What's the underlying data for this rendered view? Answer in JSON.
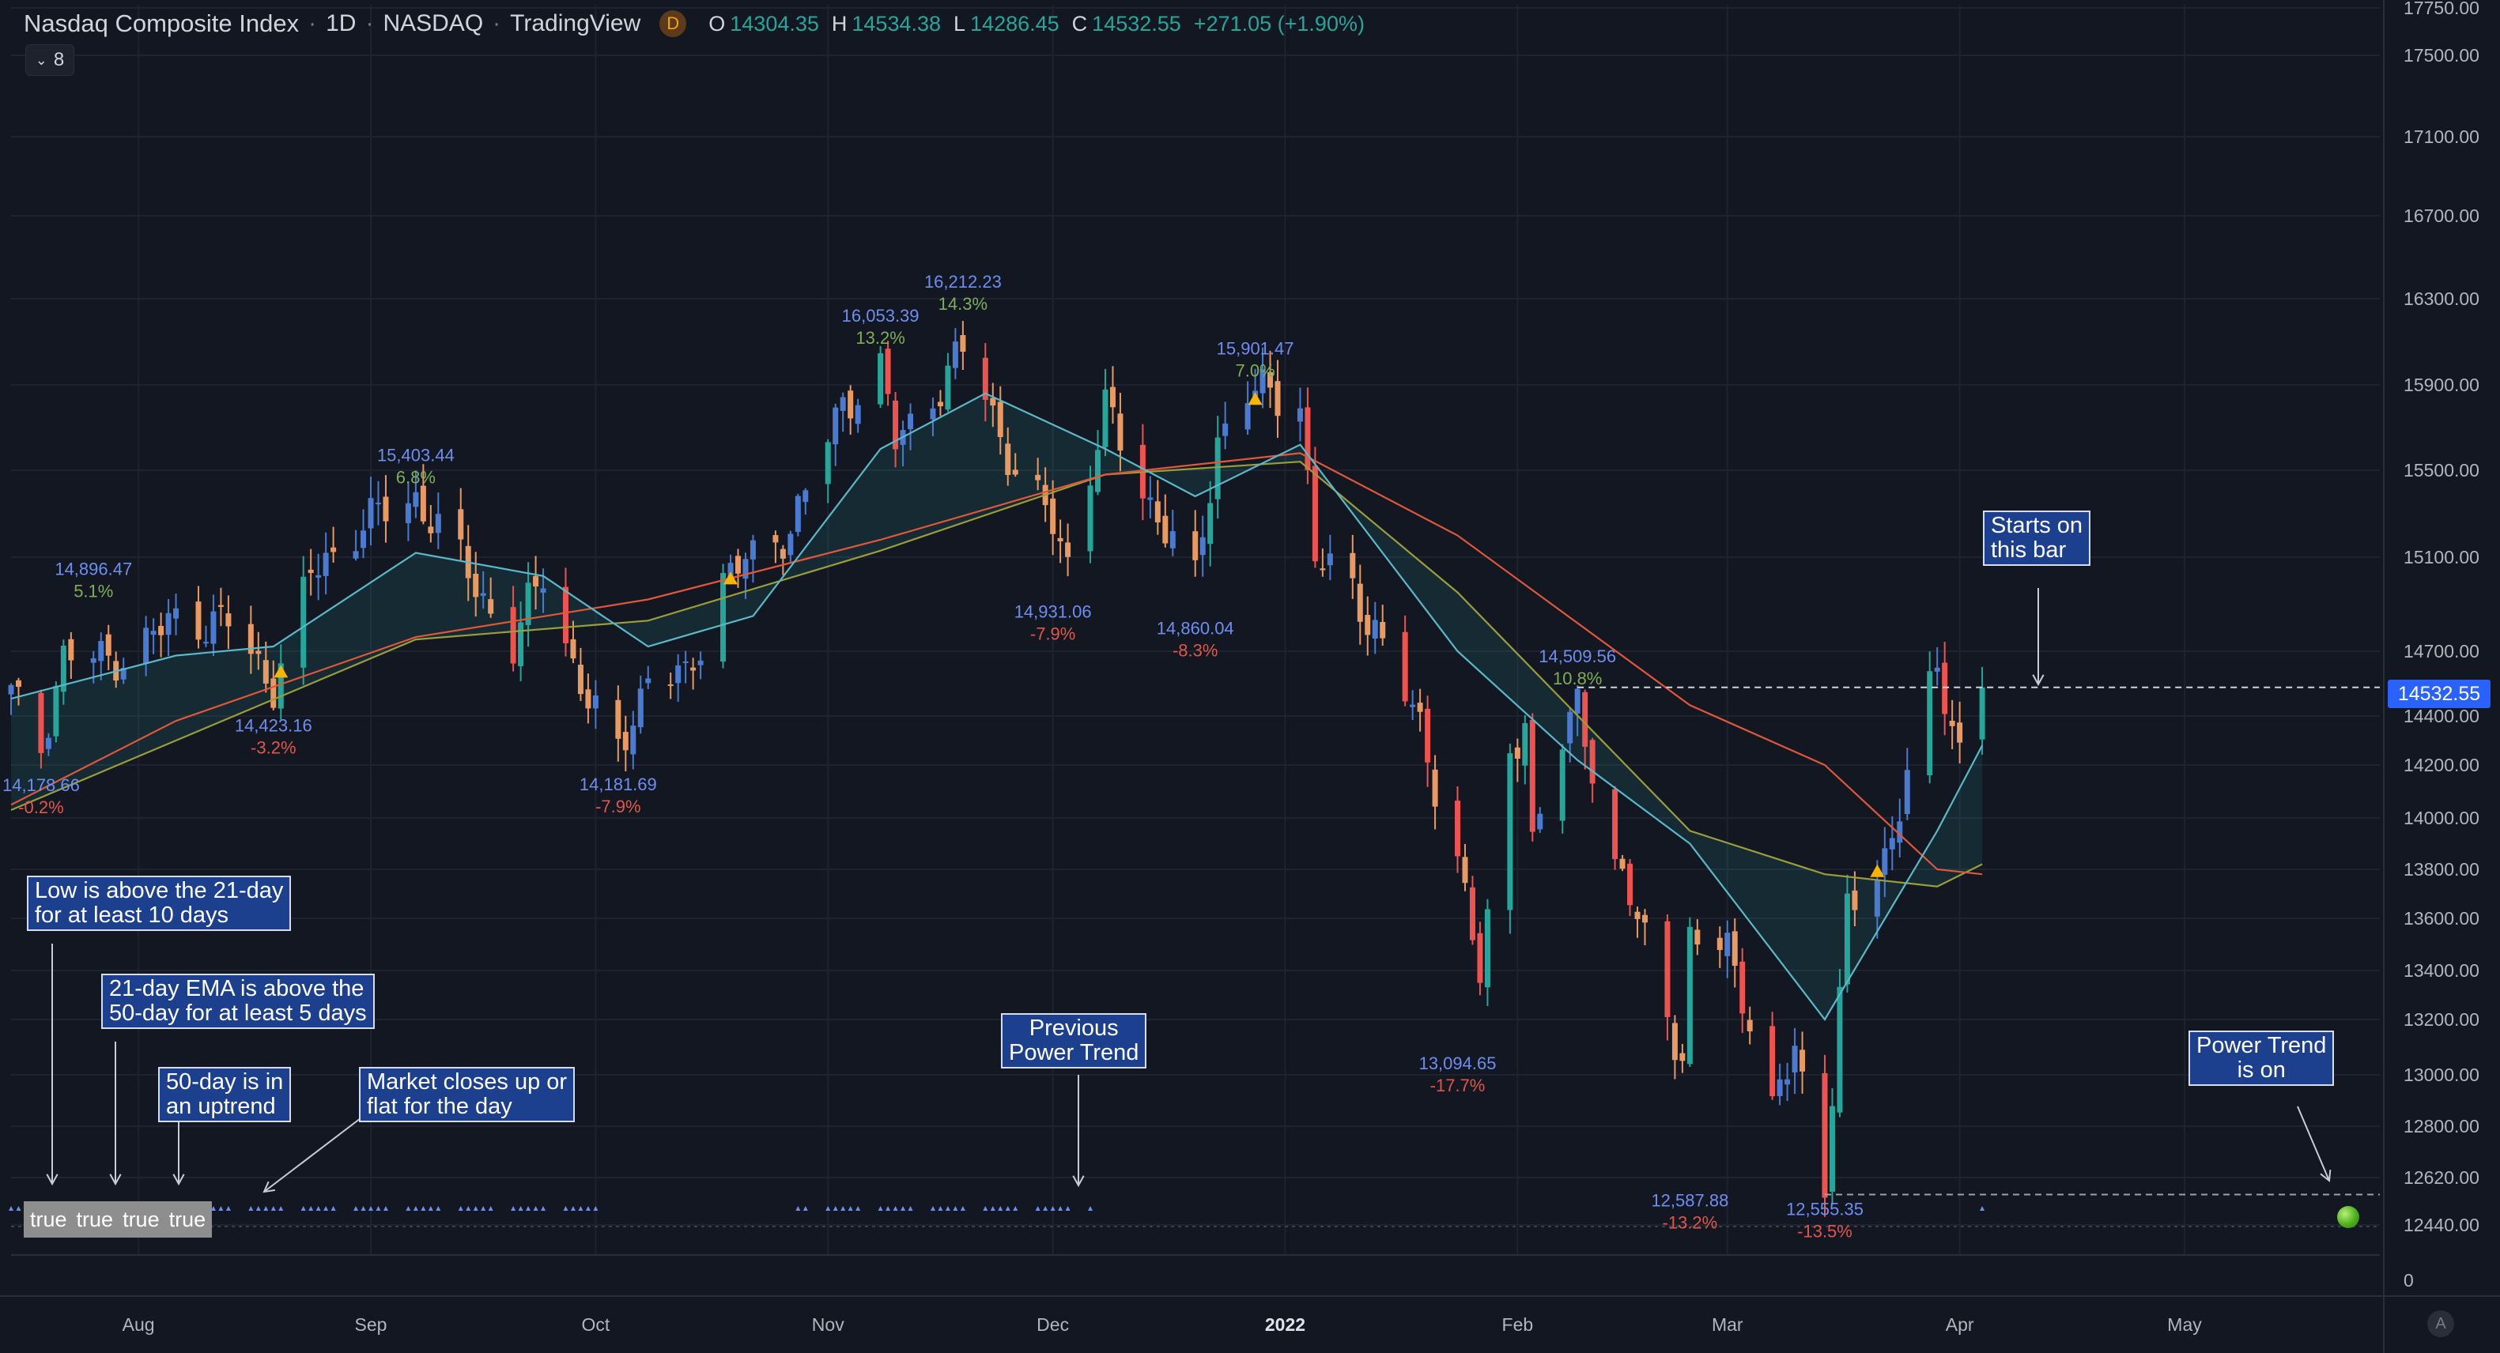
{
  "header": {
    "symbol": "Nasdaq Composite Index",
    "interval": "1D",
    "exchange": "NASDAQ",
    "source": "TradingView",
    "badge": "D",
    "ohlc": [
      {
        "k": "O",
        "v": "14304.35"
      },
      {
        "k": "H",
        "v": "14534.38"
      },
      {
        "k": "L",
        "v": "14286.45"
      },
      {
        "k": "C",
        "v": "14532.55"
      }
    ],
    "change": "+271.05 (+1.90%)",
    "indicators_button": "8"
  },
  "colors": {
    "background": "#131722",
    "grid": "#1f2330",
    "up": "#4a7bd0",
    "down": "#e89a62",
    "up_strong": "#26a69a",
    "down_strong": "#ef5350",
    "ema21": "#5bb8c9",
    "sma50": "#e0573a",
    "trail": "#9b9d3a",
    "pivot_high_label": "#6e8ef0",
    "pct_pos": "#7fae57",
    "pct_neg": "#e0574a",
    "note_bg": "#1c3f8e",
    "price_tag": "#2962ff"
  },
  "price_axis_labels": [
    "17750.00",
    "17500.00",
    "17100.00",
    "16700.00",
    "16300.00",
    "15900.00",
    "15500.00",
    "15100.00",
    "14700.00",
    "14400.00",
    "14200.00",
    "14000.00",
    "13800.00",
    "13600.00",
    "13400.00",
    "13200.00",
    "13000.00",
    "12800.00",
    "12620.00",
    "12440.00"
  ],
  "volume_axis_label": "0",
  "current_price": "14532.55",
  "scale_button": "A",
  "time_axis_labels": [
    "Aug",
    "Sep",
    "Oct",
    "Nov",
    "Dec",
    "2022",
    "Feb",
    "Mar",
    "Apr",
    "May"
  ],
  "table_values": [
    "true",
    "true",
    "true",
    "true"
  ],
  "notes": {
    "low_above": "Low is above the 21-day\nfor at least 10 days",
    "ema_above": "21-day EMA is above the\n50-day for at least 5 days",
    "uptrend": "50-day is in\nan uptrend",
    "market_closes": "Market closes up or\nflat for the day",
    "previous_power_trend": "Previous\nPower Trend",
    "starts_on": "Starts on\nthis bar",
    "power_trend_on": "Power Trend\nis on"
  },
  "chart_data": {
    "type": "candlestick",
    "series_name": "Nasdaq Composite Index",
    "ylim": [
      12300,
      17800
    ],
    "x_range": [
      "2021-07-15",
      "2022-05-26"
    ],
    "anchors": [
      {
        "d": "2021-07-15",
        "c": 14500
      },
      {
        "d": "2021-07-19",
        "c": 14275
      },
      {
        "d": "2021-07-22",
        "c": 14680
      },
      {
        "d": "2021-07-27",
        "c": 14660
      },
      {
        "d": "2021-07-30",
        "c": 14672
      },
      {
        "d": "2021-08-06",
        "c": 14835
      },
      {
        "d": "2021-08-13",
        "c": 14822
      },
      {
        "d": "2021-08-19",
        "c": 14541
      },
      {
        "d": "2021-08-24",
        "c": 15019
      },
      {
        "d": "2021-08-31",
        "c": 15259
      },
      {
        "d": "2021-09-07",
        "c": 15374
      },
      {
        "d": "2021-09-14",
        "c": 15037
      },
      {
        "d": "2021-09-20",
        "c": 14713
      },
      {
        "d": "2021-09-24",
        "c": 15047
      },
      {
        "d": "2021-09-30",
        "c": 14448
      },
      {
        "d": "2021-10-04",
        "c": 14255
      },
      {
        "d": "2021-10-08",
        "c": 14579
      },
      {
        "d": "2021-10-13",
        "c": 14571
      },
      {
        "d": "2021-10-18",
        "c": 15021
      },
      {
        "d": "2021-10-22",
        "c": 15090
      },
      {
        "d": "2021-10-27",
        "c": 15235
      },
      {
        "d": "2021-11-03",
        "c": 15811
      },
      {
        "d": "2021-11-08",
        "c": 15982
      },
      {
        "d": "2021-11-10",
        "c": 15622
      },
      {
        "d": "2021-11-15",
        "c": 15853
      },
      {
        "d": "2021-11-19",
        "c": 16057
      },
      {
        "d": "2021-11-22",
        "c": 15854
      },
      {
        "d": "2021-11-26",
        "c": 15491
      },
      {
        "d": "2021-12-01",
        "c": 15254
      },
      {
        "d": "2021-12-03",
        "c": 15085
      },
      {
        "d": "2021-12-08",
        "c": 15786
      },
      {
        "d": "2021-12-13",
        "c": 15413
      },
      {
        "d": "2021-12-17",
        "c": 15169
      },
      {
        "d": "2021-12-20",
        "c": 14980
      },
      {
        "d": "2021-12-23",
        "c": 15653
      },
      {
        "d": "2021-12-27",
        "c": 15871
      },
      {
        "d": "2022-01-03",
        "c": 15833
      },
      {
        "d": "2022-01-05",
        "c": 15100
      },
      {
        "d": "2022-01-10",
        "c": 14943
      },
      {
        "d": "2022-01-13",
        "c": 14806
      },
      {
        "d": "2022-01-19",
        "c": 14340
      },
      {
        "d": "2022-01-24",
        "c": 13855
      },
      {
        "d": "2022-01-27",
        "c": 13353
      },
      {
        "d": "2022-01-31",
        "c": 14240
      },
      {
        "d": "2022-02-02",
        "c": 14417
      },
      {
        "d": "2022-02-03",
        "c": 13879
      },
      {
        "d": "2022-02-09",
        "c": 14490
      },
      {
        "d": "2022-02-14",
        "c": 13790
      },
      {
        "d": "2022-02-18",
        "c": 13548
      },
      {
        "d": "2022-02-23",
        "c": 13037
      },
      {
        "d": "2022-02-24",
        "c": 13473
      },
      {
        "d": "2022-03-01",
        "c": 13532
      },
      {
        "d": "2022-03-07",
        "c": 12830
      },
      {
        "d": "2022-03-10",
        "c": 13130
      },
      {
        "d": "2022-03-14",
        "c": 12581
      },
      {
        "d": "2022-03-17",
        "c": 13614
      },
      {
        "d": "2022-03-23",
        "c": 13922
      },
      {
        "d": "2022-03-29",
        "c": 14619
      },
      {
        "d": "2022-04-01",
        "c": 14261
      },
      {
        "d": "2022-04-04",
        "c": 14532
      }
    ],
    "overlays": {
      "ema21": [
        {
          "d": "2021-07-15",
          "v": 14480
        },
        {
          "d": "2021-08-06",
          "v": 14680
        },
        {
          "d": "2021-08-19",
          "v": 14720
        },
        {
          "d": "2021-09-07",
          "v": 15120
        },
        {
          "d": "2021-09-24",
          "v": 15020
        },
        {
          "d": "2021-10-08",
          "v": 14720
        },
        {
          "d": "2021-10-22",
          "v": 14850
        },
        {
          "d": "2021-11-08",
          "v": 15600
        },
        {
          "d": "2021-11-22",
          "v": 15860
        },
        {
          "d": "2021-12-08",
          "v": 15600
        },
        {
          "d": "2021-12-20",
          "v": 15380
        },
        {
          "d": "2022-01-03",
          "v": 15620
        },
        {
          "d": "2022-01-24",
          "v": 14700
        },
        {
          "d": "2022-02-09",
          "v": 14220
        },
        {
          "d": "2022-02-24",
          "v": 13900
        },
        {
          "d": "2022-03-14",
          "v": 13200
        },
        {
          "d": "2022-03-29",
          "v": 13950
        },
        {
          "d": "2022-04-04",
          "v": 14280
        }
      ],
      "sma50": [
        {
          "d": "2021-07-15",
          "v": 14050
        },
        {
          "d": "2021-08-06",
          "v": 14380
        },
        {
          "d": "2021-09-07",
          "v": 14760
        },
        {
          "d": "2021-10-08",
          "v": 14920
        },
        {
          "d": "2021-11-08",
          "v": 15180
        },
        {
          "d": "2021-12-08",
          "v": 15480
        },
        {
          "d": "2022-01-03",
          "v": 15580
        },
        {
          "d": "2022-01-24",
          "v": 15200
        },
        {
          "d": "2022-02-24",
          "v": 14450
        },
        {
          "d": "2022-03-14",
          "v": 14200
        },
        {
          "d": "2022-03-29",
          "v": 13800
        },
        {
          "d": "2022-04-04",
          "v": 13780
        }
      ],
      "trail": [
        {
          "d": "2021-07-15",
          "v": 14030
        },
        {
          "d": "2021-08-06",
          "v": 14300
        },
        {
          "d": "2021-09-07",
          "v": 14750
        },
        {
          "d": "2021-10-08",
          "v": 14830
        },
        {
          "d": "2021-11-08",
          "v": 15130
        },
        {
          "d": "2021-12-08",
          "v": 15480
        },
        {
          "d": "2022-01-03",
          "v": 15540
        },
        {
          "d": "2022-01-24",
          "v": 14950
        },
        {
          "d": "2022-02-24",
          "v": 13950
        },
        {
          "d": "2022-03-14",
          "v": 13780
        },
        {
          "d": "2022-03-29",
          "v": 13730
        },
        {
          "d": "2022-04-04",
          "v": 13820
        }
      ]
    },
    "pivot_highs": [
      {
        "d": "2021-07-26",
        "v": "14,896.47",
        "pct": "5.1%"
      },
      {
        "d": "2021-09-07",
        "v": "15,403.44",
        "pct": "6.8%"
      },
      {
        "d": "2021-11-08",
        "v": "16,053.39",
        "pct": "13.2%"
      },
      {
        "d": "2021-11-19",
        "v": "16,212.23",
        "pct": "14.3%"
      },
      {
        "d": "2021-12-28",
        "v": "15,901.47",
        "pct": "7.0%"
      },
      {
        "d": "2022-02-09",
        "v": "14,509.56",
        "pct": "10.8%"
      }
    ],
    "pivot_lows": [
      {
        "d": "2021-07-19",
        "v": "14,178.66",
        "pct": "-0.2%"
      },
      {
        "d": "2021-08-19",
        "v": "14,423.16",
        "pct": "-3.2%"
      },
      {
        "d": "2021-10-04",
        "v": "14,181.69",
        "pct": "-7.9%"
      },
      {
        "d": "2021-12-01",
        "v": "14,931.06",
        "pct": "-7.9%"
      },
      {
        "d": "2021-12-20",
        "v": "14,860.04",
        "pct": "-8.3%"
      },
      {
        "d": "2022-01-24",
        "v": "13,094.65",
        "pct": "-17.7%"
      },
      {
        "d": "2022-02-24",
        "v": "12,587.88",
        "pct": "-13.2%"
      },
      {
        "d": "2022-03-14",
        "v": "12,555.35",
        "pct": "-13.5%"
      }
    ],
    "power_trend_markers": [
      {
        "from": "2021-07-15",
        "to": "2021-10-01"
      },
      {
        "from": "2021-10-28",
        "to": "2021-12-06"
      },
      {
        "from": "2022-04-04",
        "to": "2022-04-04"
      }
    ],
    "signal_triangles": [
      "2021-08-20",
      "2021-10-19",
      "2021-12-28",
      "2022-03-21"
    ],
    "reference_lines": [
      14532.55,
      12555.35
    ]
  }
}
